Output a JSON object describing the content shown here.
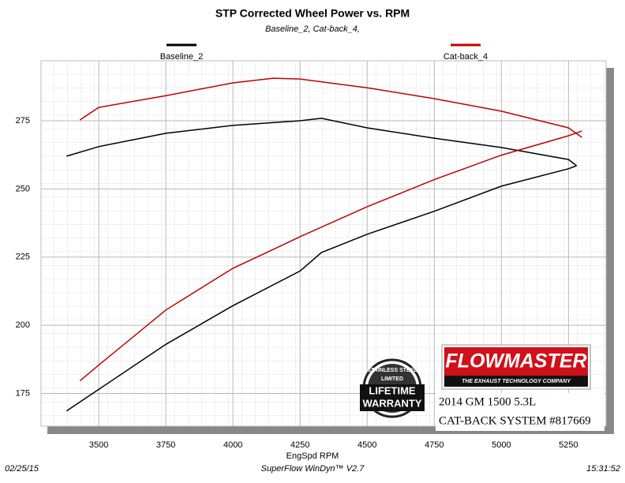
{
  "chart_data": {
    "type": "line",
    "title": "STP Corrected Wheel Power vs. RPM",
    "subtitle": "Baseline_2, Cat-back_4,",
    "x_label": "EngSpd RPM",
    "xlim": [
      3285,
      5390
    ],
    "ylim": [
      163,
      297
    ],
    "xticks": [
      3500,
      3750,
      4000,
      4250,
      4500,
      4750,
      5000,
      5250
    ],
    "yticks": [
      175,
      200,
      225,
      250,
      275
    ],
    "grid": true,
    "series": [
      {
        "name": "Baseline_2",
        "color": "#000000",
        "x": [
          3380,
          3500,
          3750,
          4000,
          4250,
          4330,
          4500,
          4750,
          5000,
          5250,
          5280
        ],
        "curves": [
          {
            "values": [
              168.6,
              176.5,
              193,
              207.2,
              219.9,
              226.7,
              233.4,
              241.8,
              251,
              257.4,
              258.5
            ]
          },
          {
            "values": [
              262,
              265.5,
              270.4,
              273.3,
              275,
              275.9,
              272.4,
              268.6,
              265.2,
              260.8,
              258.5
            ]
          }
        ]
      },
      {
        "name": "Cat-back_4",
        "color": "#c00000",
        "x": [
          3430,
          3500,
          3750,
          4000,
          4150,
          4250,
          4500,
          4750,
          5000,
          5250,
          5300
        ],
        "curves": [
          {
            "values": [
              179.6,
              185.4,
              205.6,
              220.9,
              227.8,
              232.5,
              243.5,
              253.4,
              262.4,
              269.5,
              271.2
            ]
          },
          {
            "values": [
              275.3,
              279.9,
              284.2,
              288.9,
              290.6,
              290.3,
              287.1,
              283.1,
              278.5,
              272.4,
              268.9
            ]
          }
        ]
      }
    ],
    "footer": {
      "date": "02/25/15",
      "software": "SuperFlow WinDyn™ V2.7",
      "time": "15:31:52"
    },
    "logo": {
      "brand": "FLOWMASTER",
      "tagline": "THE EXHAUST TECHNOLOGY COMPANY",
      "badge_top": "STAINLESS STEEL",
      "badge_mid": "LIMITED",
      "badge_line1": "LIFETIME",
      "badge_line2": "WARRANTY",
      "vehicle": "2014 GM 1500 5.3L",
      "system": "CAT-BACK SYSTEM #817669"
    }
  }
}
